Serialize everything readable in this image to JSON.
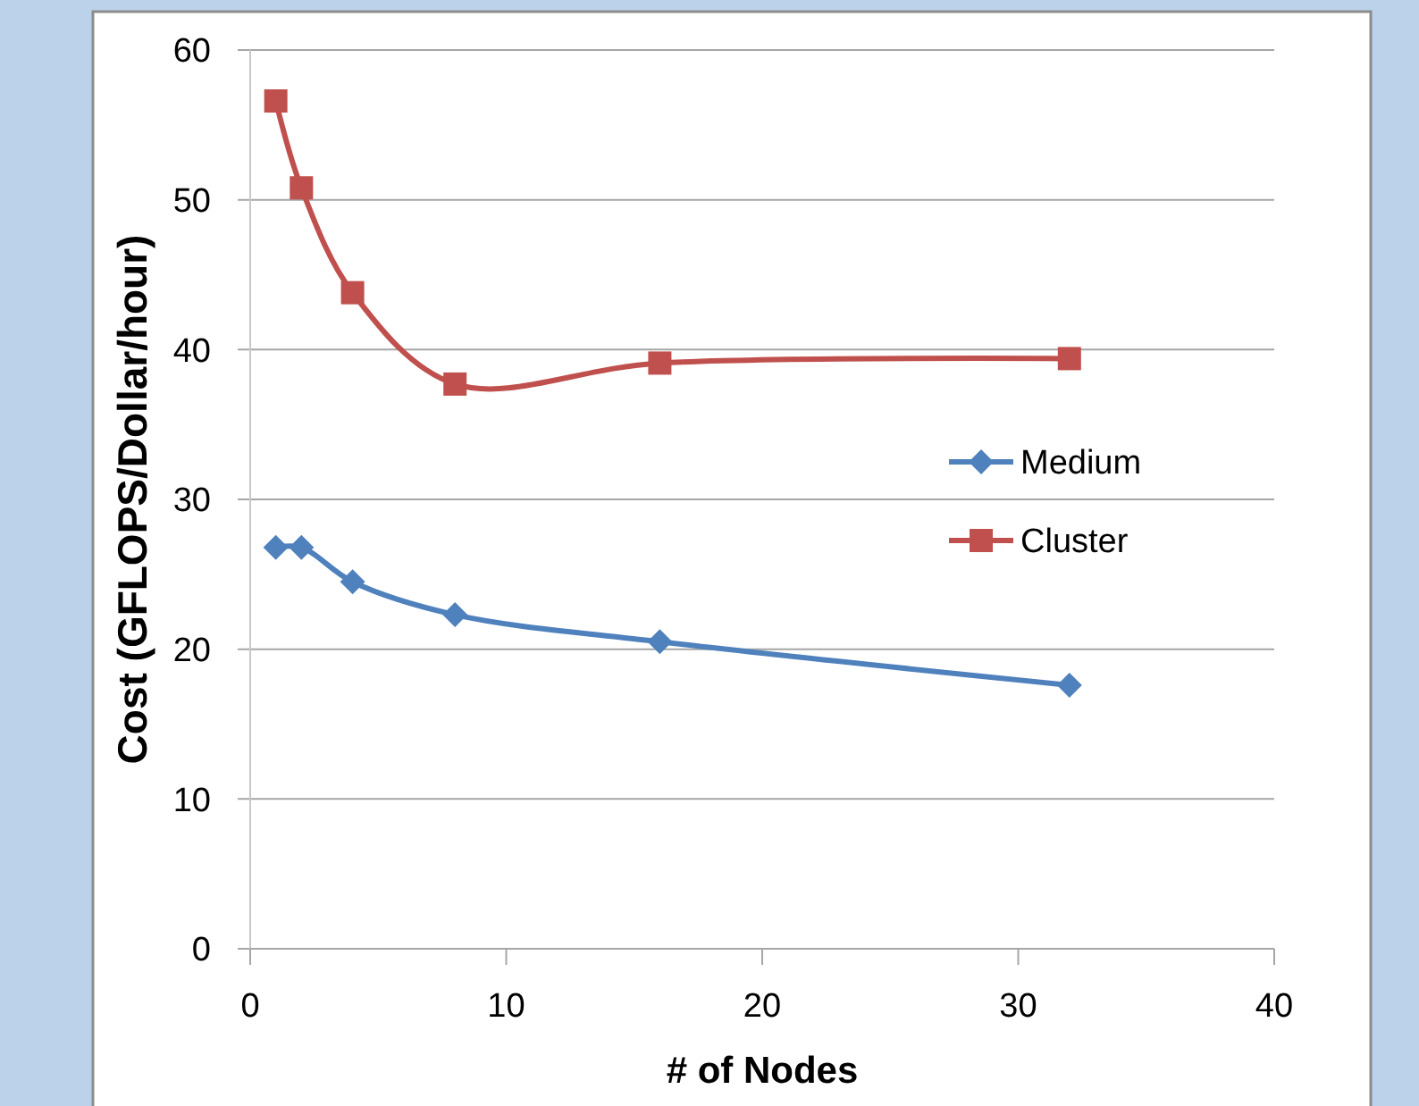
{
  "chart_data": {
    "type": "line",
    "xlabel": "# of Nodes",
    "ylabel": "Cost (GFLOPS/Dollar/hour)",
    "x": [
      1,
      2,
      4,
      8,
      16,
      32
    ],
    "xlim": [
      0,
      40
    ],
    "xticks": [
      0,
      10,
      20,
      30,
      40
    ],
    "ylim": [
      0,
      60
    ],
    "yticks": [
      0,
      10,
      20,
      30,
      40,
      50,
      60
    ],
    "grid": "y",
    "legend": "right",
    "line_style": "solid",
    "series": [
      {
        "name": "Medium",
        "color": "#4f81bd",
        "marker": "diamond",
        "values": [
          26.8,
          26.8,
          24.5,
          22.3,
          20.5,
          17.6
        ]
      },
      {
        "name": "Cluster",
        "color": "#c0504d",
        "marker": "square",
        "values": [
          56.6,
          50.8,
          43.8,
          37.7,
          39.1,
          39.4
        ]
      }
    ]
  }
}
